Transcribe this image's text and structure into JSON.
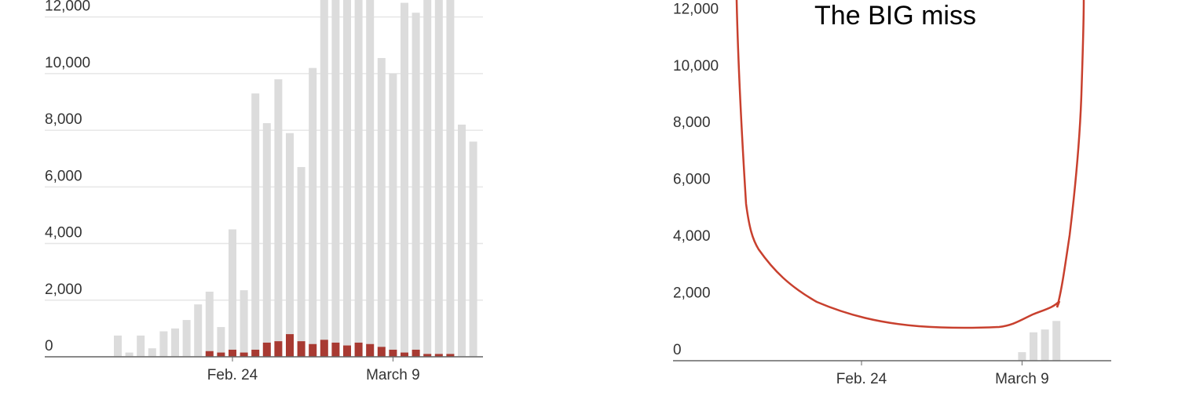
{
  "chart_data": [
    {
      "type": "bar",
      "categories": [
        null,
        null,
        null,
        null,
        null,
        null,
        null,
        null,
        null,
        null,
        "Feb. 24",
        null,
        null,
        null,
        null,
        null,
        null,
        null,
        null,
        null,
        null,
        null,
        null,
        null,
        "March 9",
        null,
        null,
        null,
        null,
        null,
        null,
        null
      ],
      "series": [
        {
          "color": "#dcdcdc",
          "values": [
            750,
            150,
            750,
            300,
            900,
            1000,
            1300,
            1850,
            2300,
            1050,
            4500,
            2350,
            9300,
            8250,
            9800,
            7900,
            6700,
            10200,
            13500,
            13500,
            13500,
            13500,
            13500,
            10550,
            10000,
            12500,
            12150,
            13500,
            13500,
            13500,
            8200,
            7600
          ]
        },
        {
          "color": "#a83a32",
          "values": [
            0,
            0,
            0,
            0,
            0,
            0,
            0,
            0,
            200,
            150,
            250,
            150,
            250,
            500,
            550,
            800,
            550,
            450,
            600,
            500,
            400,
            500,
            450,
            350,
            250,
            150,
            250,
            100,
            100,
            100,
            0,
            0
          ]
        }
      ],
      "ylim": [
        0,
        12600
      ],
      "yticks": [
        {
          "value": 0,
          "label": "0"
        },
        {
          "value": 2000,
          "label": "2,000"
        },
        {
          "value": 4000,
          "label": "4,000"
        },
        {
          "value": 6000,
          "label": "6,000"
        },
        {
          "value": 8000,
          "label": "8,000"
        },
        {
          "value": 10000,
          "label": "10,000"
        },
        {
          "value": 12000,
          "label": "12,000"
        }
      ],
      "grid": true
    },
    {
      "type": "bar",
      "annotation": "The BIG miss",
      "categories": [
        null,
        null,
        null,
        null,
        null,
        null,
        null,
        null,
        null,
        null,
        "Feb. 24",
        null,
        null,
        null,
        null,
        null,
        null,
        null,
        null,
        null,
        null,
        null,
        null,
        null,
        "March 9",
        null,
        null,
        null,
        null,
        null,
        null,
        null
      ],
      "series": [
        {
          "color": "#dcdcdc",
          "values": [
            null,
            null,
            null,
            null,
            null,
            null,
            null,
            null,
            null,
            null,
            null,
            null,
            null,
            null,
            null,
            null,
            null,
            null,
            null,
            null,
            null,
            null,
            null,
            null,
            300,
            1000,
            1100,
            1400,
            null,
            null,
            null,
            null
          ]
        }
      ],
      "ylim": [
        0,
        12700
      ],
      "yticks": [
        {
          "value": 0,
          "label": "0"
        },
        {
          "value": 2000,
          "label": "2,000"
        },
        {
          "value": 4000,
          "label": "4,000"
        },
        {
          "value": 6000,
          "label": "6,000"
        },
        {
          "value": 8000,
          "label": "8,000"
        },
        {
          "value": 10000,
          "label": "10,000"
        },
        {
          "value": 12000,
          "label": "12,000"
        }
      ],
      "grid": false
    }
  ]
}
